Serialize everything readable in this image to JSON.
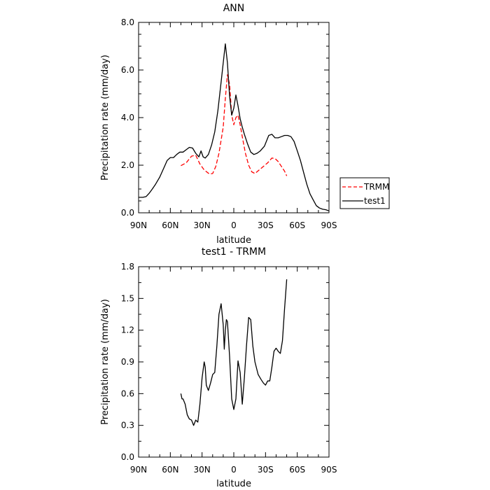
{
  "chart_data": [
    {
      "type": "line",
      "title": "ANN",
      "xlabel": "latitude",
      "ylabel": "Precipitation rate (mm/day)",
      "xlim": [
        90,
        -90
      ],
      "ylim": [
        0,
        8
      ],
      "xtick_values": [
        90,
        60,
        30,
        0,
        -30,
        -60,
        -90
      ],
      "xtick_labels": [
        "90N",
        "60N",
        "30N",
        "0",
        "30S",
        "60S",
        "90S"
      ],
      "ytick_values": [
        0,
        2,
        4,
        6,
        8
      ],
      "ytick_labels": [
        "0.0",
        "2.0",
        "4.0",
        "6.0",
        "8.0"
      ],
      "legend": {
        "placement": "outside-right",
        "entries": [
          "TRMM",
          "test1"
        ]
      },
      "series": [
        {
          "name": "TRMM",
          "color": "#ff0000",
          "style": "dashed",
          "x": [
            50,
            45,
            40,
            36,
            32,
            28,
            23,
            20,
            17,
            14,
            10,
            8,
            6,
            4,
            2,
            0,
            -2,
            -4,
            -6,
            -8,
            -11,
            -14,
            -17,
            -20,
            -24,
            -28,
            -32,
            -36,
            -39,
            -42,
            -45,
            -48,
            -50
          ],
          "y": [
            1.98,
            2.1,
            2.38,
            2.42,
            2.05,
            1.8,
            1.63,
            1.65,
            1.95,
            2.5,
            3.6,
            4.8,
            5.8,
            5.4,
            4.1,
            3.7,
            4.0,
            4.1,
            3.7,
            3.2,
            2.5,
            2.0,
            1.72,
            1.65,
            1.8,
            1.95,
            2.1,
            2.3,
            2.28,
            2.15,
            1.95,
            1.75,
            1.55
          ]
        },
        {
          "name": "test1",
          "color": "#000000",
          "style": "solid",
          "x": [
            90,
            86,
            83,
            80,
            77,
            74,
            70,
            66,
            63,
            60,
            57,
            54,
            51,
            48,
            45,
            42,
            39,
            36,
            33,
            31,
            29,
            27,
            24,
            21,
            18,
            15,
            12,
            10,
            8,
            6,
            4,
            2,
            0,
            -2,
            -4,
            -6,
            -8,
            -10,
            -13,
            -16,
            -19,
            -22,
            -25,
            -29,
            -33,
            -36,
            -39,
            -42,
            -45,
            -48,
            -51,
            -54,
            -57,
            -60,
            -63,
            -66,
            -69,
            -72,
            -75,
            -78,
            -81,
            -84,
            -87,
            -90
          ],
          "y": [
            0.65,
            0.65,
            0.68,
            0.82,
            1.0,
            1.2,
            1.5,
            1.9,
            2.2,
            2.32,
            2.32,
            2.45,
            2.55,
            2.55,
            2.65,
            2.75,
            2.72,
            2.5,
            2.35,
            2.6,
            2.35,
            2.3,
            2.45,
            2.85,
            3.4,
            4.3,
            5.5,
            6.3,
            7.1,
            6.3,
            4.9,
            4.1,
            4.4,
            4.95,
            4.5,
            3.95,
            3.6,
            3.3,
            2.9,
            2.55,
            2.45,
            2.5,
            2.6,
            2.8,
            3.25,
            3.3,
            3.15,
            3.15,
            3.2,
            3.25,
            3.25,
            3.2,
            3.0,
            2.6,
            2.2,
            1.7,
            1.2,
            0.8,
            0.55,
            0.3,
            0.2,
            0.15,
            0.13,
            0.08
          ]
        }
      ]
    },
    {
      "type": "line",
      "title": "test1 - TRMM",
      "xlabel": "latitude",
      "ylabel": "Precipitation rate (mm/day)",
      "xlim": [
        90,
        -90
      ],
      "ylim": [
        0,
        1.8
      ],
      "xtick_values": [
        90,
        60,
        30,
        0,
        -30,
        -60,
        -90
      ],
      "xtick_labels": [
        "90N",
        "60N",
        "30N",
        "0",
        "30S",
        "60S",
        "90S"
      ],
      "ytick_values": [
        0,
        0.3,
        0.6,
        0.9,
        1.2,
        1.5,
        1.8
      ],
      "ytick_labels": [
        "0.0",
        "0.3",
        "0.6",
        "0.9",
        "1.2",
        "1.5",
        "1.8"
      ],
      "series": [
        {
          "color": "#000000",
          "style": "solid",
          "x": [
            50,
            49,
            48,
            46,
            44,
            42,
            40,
            38,
            36,
            34,
            32,
            30,
            28,
            27,
            26,
            24,
            22,
            20,
            18,
            16,
            14,
            12,
            10,
            9,
            8,
            7,
            6,
            4,
            2,
            0,
            -2,
            -4,
            -6,
            -8,
            -10,
            -12,
            -14,
            -16,
            -18,
            -20,
            -23,
            -26,
            -28,
            -30,
            -32,
            -34,
            -36,
            -38,
            -40,
            -42,
            -44,
            -46,
            -48,
            -50
          ],
          "y": [
            0.6,
            0.55,
            0.55,
            0.5,
            0.4,
            0.36,
            0.35,
            0.3,
            0.35,
            0.33,
            0.5,
            0.75,
            0.9,
            0.85,
            0.68,
            0.63,
            0.7,
            0.78,
            0.8,
            1.05,
            1.35,
            1.45,
            1.25,
            1.02,
            1.2,
            1.3,
            1.28,
            0.95,
            0.55,
            0.45,
            0.55,
            0.91,
            0.8,
            0.5,
            0.75,
            1.05,
            1.32,
            1.3,
            1.05,
            0.9,
            0.78,
            0.73,
            0.7,
            0.68,
            0.72,
            0.72,
            0.85,
            1.0,
            1.03,
            1.0,
            0.98,
            1.1,
            1.4,
            1.68
          ]
        }
      ]
    }
  ]
}
